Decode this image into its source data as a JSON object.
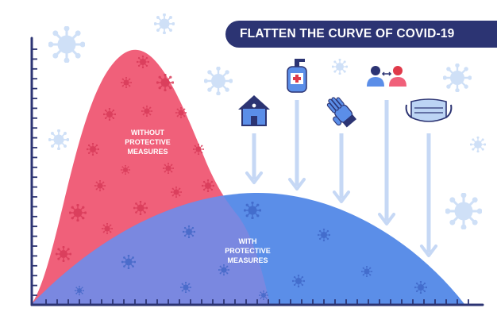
{
  "title": "FLATTEN THE CURVE OF COVID-19",
  "curves": {
    "without_label": "WITHOUT\nPROTECTIVE\nMEASURES",
    "with_label": "WITH\nPROTECTIVE\nMEASURES"
  },
  "measures": [
    {
      "icon": "house-icon"
    },
    {
      "icon": "hand-sanitizer-icon"
    },
    {
      "icon": "glove-icon"
    },
    {
      "icon": "social-distance-icon"
    },
    {
      "icon": "face-mask-icon"
    }
  ],
  "colors": {
    "banner": "#2c3473",
    "without_curve": "#f0607a",
    "with_curve": "#5b8ee8",
    "overlap": "#7a88e0",
    "axis": "#2c3473",
    "arrow": "#c6d8f5",
    "virus_decor": "#cfe0f7",
    "virus_red": "#d83a58",
    "virus_blue": "#3c63c4"
  }
}
